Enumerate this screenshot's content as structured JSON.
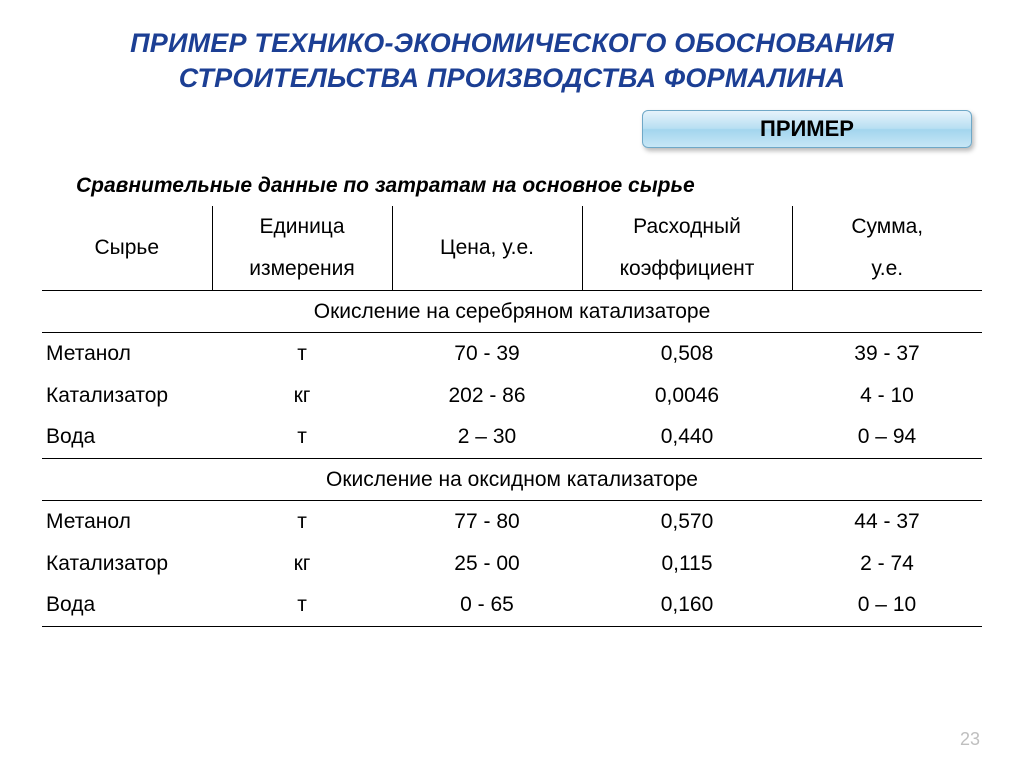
{
  "title_line1": "ПРИМЕР ТЕХНИКО-ЭКОНОМИЧЕСКОГО ОБОСНОВАНИЯ",
  "title_line2": "СТРОИТЕЛЬСТВА ПРОИЗВОДСТВА ФОРМАЛИНА",
  "chip_label": "ПРИМЕР",
  "subtitle": "Сравнительные данные по затратам на основное сырье",
  "page_number": "23",
  "table": {
    "columns": [
      {
        "label": "Сырье",
        "align": "center"
      },
      {
        "label_line1": "Единица",
        "label_line2": "измерения"
      },
      {
        "label": "Цена, у.е."
      },
      {
        "label_line1": "Расходный",
        "label_line2": "коэффициент"
      },
      {
        "label_line1": "Сумма,",
        "label_line2": "у.е."
      }
    ],
    "sections": [
      {
        "heading": "Окисление на серебряном катализаторе",
        "rows": [
          {
            "c1": "Метанол",
            "c2": "т",
            "c3": "70 - 39",
            "c4": "0,508",
            "c5": "39 - 37"
          },
          {
            "c1": "Катализатор",
            "c2": "кг",
            "c3": "202 - 86",
            "c4": "0,0046",
            "c5": "4 - 10"
          },
          {
            "c1": "Вода",
            "c2": "т",
            "c3": "2 – 30",
            "c4": "0,440",
            "c5": "0 – 94"
          }
        ]
      },
      {
        "heading": "Окисление на оксидном катализаторе",
        "rows": [
          {
            "c1": "Метанол",
            "c2": "т",
            "c3": "77 - 80",
            "c4": "0,570",
            "c5": "44 - 37"
          },
          {
            "c1": "Катализатор",
            "c2": "кг",
            "c3": "25 - 00",
            "c4": "0,115",
            "c5": "2 - 74"
          },
          {
            "c1": "Вода",
            "c2": "т",
            "c3": "0 - 65",
            "c4": "0,160",
            "c5": "0 – 10"
          }
        ]
      }
    ]
  },
  "style": {
    "title_color": "#1c3f94",
    "title_fontsize": 27,
    "body_fontsize": 21,
    "chip_gradient": [
      "#e6f3fb",
      "#b8dff2",
      "#a3d5ee",
      "#c7e6f6"
    ],
    "chip_border": "#6fa8c7",
    "border_color": "#000000",
    "background": "#ffffff",
    "pagenum_color": "#bfbfbf"
  }
}
